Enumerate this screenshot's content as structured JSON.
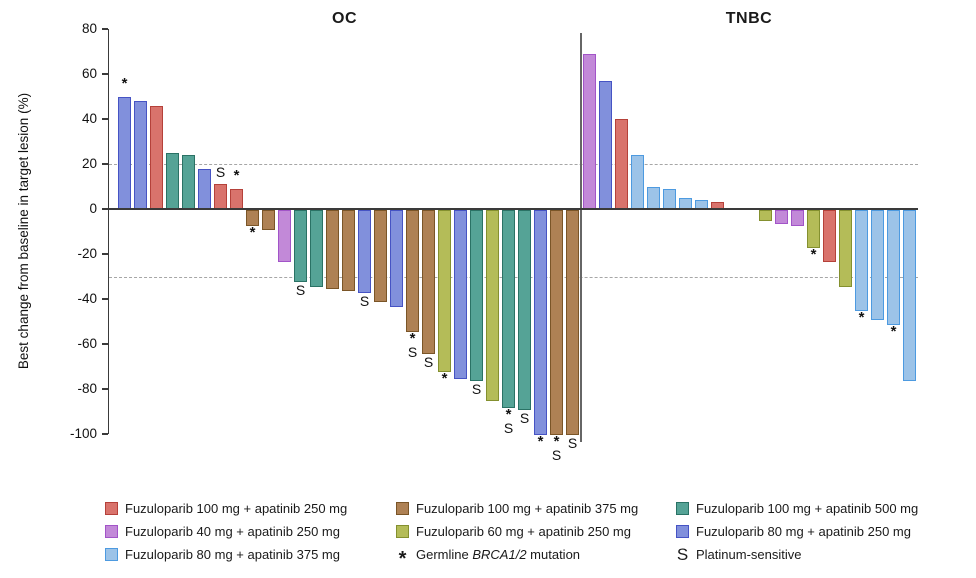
{
  "chart_data": {
    "type": "bar",
    "subtype": "waterfall",
    "ylabel": "Best change from baseline in target lesion (%)",
    "ylim": [
      -100,
      80
    ],
    "y_ticks": [
      80,
      60,
      40,
      20,
      0,
      -20,
      -40,
      -60,
      -80,
      -100
    ],
    "reference_lines": [
      20,
      -30
    ],
    "grid": "off",
    "series_colors": {
      "f100a250": {
        "fill": "#d9736c",
        "border": "#b5413a",
        "label": "Fuzuloparib 100 mg + apatinib 250 mg"
      },
      "f100a375": {
        "fill": "#ae8154",
        "border": "#7a5527",
        "label": "Fuzuloparib 100 mg + apatinib 375 mg"
      },
      "f100a500": {
        "fill": "#55a396",
        "border": "#2a7265",
        "label": "Fuzuloparib 100 mg + apatinib 500 mg"
      },
      "f40a250": {
        "fill": "#c289d8",
        "border": "#a254c8",
        "label": "Fuzuloparib 40 mg + apatinib 250 mg"
      },
      "f60a250": {
        "fill": "#b4bc58",
        "border": "#84902f",
        "label": "Fuzuloparib 60 mg + apatinib 250 mg"
      },
      "f80a250": {
        "fill": "#8190dc",
        "border": "#4653c4",
        "label": "Fuzuloparib 80 mg + apatinib 250 mg"
      },
      "f80a375": {
        "fill": "#9cc3e8",
        "border": "#4d9ae0",
        "label": "Fuzuloparib 80 mg + apatinib 375 mg"
      }
    },
    "marker_meaning": {
      "star": "Germline BRCA1/2 mutation",
      "s": "Platinum-sensitive"
    },
    "panels": [
      {
        "name": "OC",
        "bars": [
          {
            "g": "f80a250",
            "v": 50,
            "ann": "*"
          },
          {
            "g": "f80a250",
            "v": 48
          },
          {
            "g": "f100a250",
            "v": 46
          },
          {
            "g": "f100a500",
            "v": 25
          },
          {
            "g": "f100a500",
            "v": 24
          },
          {
            "g": "f80a250",
            "v": 18
          },
          {
            "g": "f100a250",
            "v": 11,
            "ann": "S"
          },
          {
            "g": "f100a250",
            "v": 9,
            "ann": "*"
          },
          {
            "g": "f100a375",
            "v": -7,
            "ann": "*"
          },
          {
            "g": "f100a375",
            "v": -9
          },
          {
            "g": "f40a250",
            "v": -23
          },
          {
            "g": "f100a500",
            "v": -32,
            "ann": "S"
          },
          {
            "g": "f100a500",
            "v": -34
          },
          {
            "g": "f100a375",
            "v": -35
          },
          {
            "g": "f100a375",
            "v": -36
          },
          {
            "g": "f80a250",
            "v": -37,
            "ann": "S"
          },
          {
            "g": "f100a375",
            "v": -41
          },
          {
            "g": "f80a250",
            "v": -43
          },
          {
            "g": "f100a375",
            "v": -54,
            "ann": "*S"
          },
          {
            "g": "f100a375",
            "v": -64,
            "ann": "S"
          },
          {
            "g": "f60a250",
            "v": -72,
            "ann": "*"
          },
          {
            "g": "f80a250",
            "v": -75
          },
          {
            "g": "f100a500",
            "v": -76,
            "ann": "S"
          },
          {
            "g": "f60a250",
            "v": -85
          },
          {
            "g": "f100a500",
            "v": -88,
            "ann": "*S"
          },
          {
            "g": "f100a500",
            "v": -89,
            "ann": "S"
          },
          {
            "g": "f80a250",
            "v": -100,
            "ann": "*"
          },
          {
            "g": "f100a375",
            "v": -100,
            "ann": "*S"
          },
          {
            "g": "f100a375",
            "v": -100,
            "ann": "S"
          }
        ]
      },
      {
        "name": "TNBC",
        "bars": [
          {
            "g": "f40a250",
            "v": 69
          },
          {
            "g": "f80a250",
            "v": 57
          },
          {
            "g": "f100a250",
            "v": 40
          },
          {
            "g": "f80a375",
            "v": 24
          },
          {
            "g": "f80a375",
            "v": 10
          },
          {
            "g": "f80a375",
            "v": 9
          },
          {
            "g": "f80a375",
            "v": 5
          },
          {
            "g": "f80a375",
            "v": 4
          },
          {
            "g": "f100a250",
            "v": 3
          },
          {
            "gap": 2
          },
          {
            "g": "f60a250",
            "v": -5
          },
          {
            "g": "f40a250",
            "v": -6
          },
          {
            "g": "f40a250",
            "v": -7
          },
          {
            "g": "f60a250",
            "v": -17,
            "ann": "*"
          },
          {
            "g": "f100a250",
            "v": -23
          },
          {
            "g": "f60a250",
            "v": -34
          },
          {
            "g": "f80a375",
            "v": -45,
            "ann": "*"
          },
          {
            "g": "f80a375",
            "v": -49
          },
          {
            "g": "f80a375",
            "v": -51,
            "ann": "*"
          },
          {
            "g": "f80a375",
            "v": -76
          }
        ]
      }
    ]
  },
  "legend": {
    "columns": [
      [
        {
          "type": "swatch",
          "color": "f100a250",
          "label": "Fuzuloparib 100 mg + apatinib 250 mg"
        },
        {
          "type": "swatch",
          "color": "f40a250",
          "label": "Fuzuloparib 40 mg + apatinib 250 mg"
        },
        {
          "type": "swatch",
          "color": "f80a375",
          "label": "Fuzuloparib 80 mg + apatinib 375 mg"
        }
      ],
      [
        {
          "type": "swatch",
          "color": "f100a375",
          "label": "Fuzuloparib 100 mg + apatinib 375 mg"
        },
        {
          "type": "swatch",
          "color": "f60a250",
          "label": "Fuzuloparib 60 mg + apatinib 250 mg"
        },
        {
          "type": "star",
          "label_pre": "Germline ",
          "label_italic": "BRCA1/2",
          "label_post": " mutation"
        }
      ],
      [
        {
          "type": "swatch",
          "color": "f100a500",
          "label": "Fuzuloparib 100 mg + apatinib 500 mg"
        },
        {
          "type": "swatch",
          "color": "f80a250",
          "label": "Fuzuloparib 80 mg + apatinib 250 mg"
        },
        {
          "type": "s",
          "label": "Platinum-sensitive"
        }
      ]
    ]
  }
}
